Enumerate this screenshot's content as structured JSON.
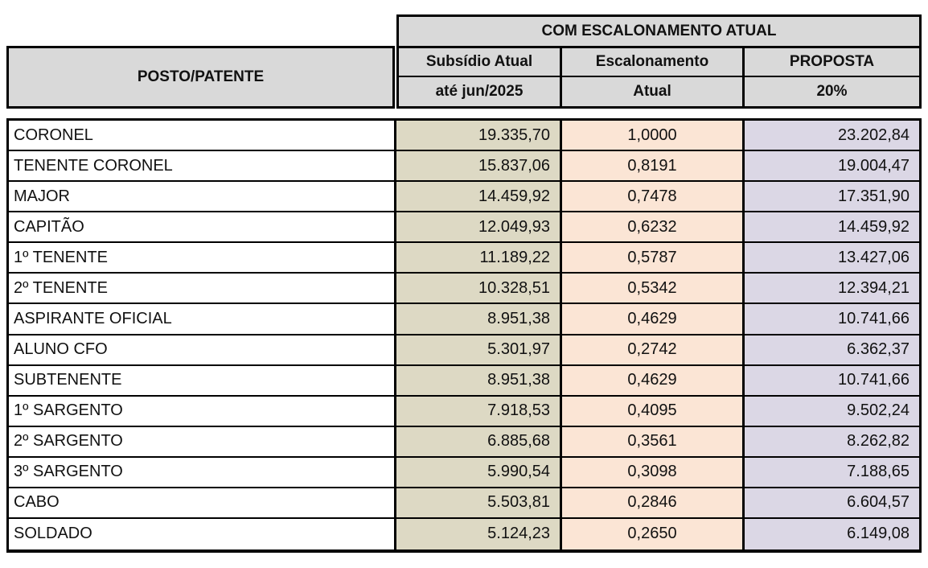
{
  "table": {
    "group_header": "COM ESCALONAMENTO ATUAL",
    "row_header": "POSTO/PATENTE",
    "columns": [
      {
        "title": "Subsídio Atual",
        "subtitle": "até jun/2025"
      },
      {
        "title": "Escalonamento",
        "subtitle": "Atual"
      },
      {
        "title": "PROPOSTA",
        "subtitle": "20%"
      }
    ],
    "rows": [
      {
        "posto": "CORONEL",
        "subsidio_atual": "19.335,70",
        "escalonamento": "1,0000",
        "proposta": "23.202,84"
      },
      {
        "posto": "TENENTE CORONEL",
        "subsidio_atual": "15.837,06",
        "escalonamento": "0,8191",
        "proposta": "19.004,47"
      },
      {
        "posto": "MAJOR",
        "subsidio_atual": "14.459,92",
        "escalonamento": "0,7478",
        "proposta": "17.351,90"
      },
      {
        "posto": "CAPITÃO",
        "subsidio_atual": "12.049,93",
        "escalonamento": "0,6232",
        "proposta": "14.459,92"
      },
      {
        "posto": "1º TENENTE",
        "subsidio_atual": "11.189,22",
        "escalonamento": "0,5787",
        "proposta": "13.427,06"
      },
      {
        "posto": "2º TENENTE",
        "subsidio_atual": "10.328,51",
        "escalonamento": "0,5342",
        "proposta": "12.394,21"
      },
      {
        "posto": "ASPIRANTE OFICIAL",
        "subsidio_atual": "8.951,38",
        "escalonamento": "0,4629",
        "proposta": "10.741,66"
      },
      {
        "posto": "ALUNO CFO",
        "subsidio_atual": "5.301,97",
        "escalonamento": "0,2742",
        "proposta": "6.362,37"
      },
      {
        "posto": "SUBTENENTE",
        "subsidio_atual": "8.951,38",
        "escalonamento": "0,4629",
        "proposta": "10.741,66"
      },
      {
        "posto": "1º SARGENTO",
        "subsidio_atual": "7.918,53",
        "escalonamento": "0,4095",
        "proposta": "9.502,24"
      },
      {
        "posto": "2º SARGENTO",
        "subsidio_atual": "6.885,68",
        "escalonamento": "0,3561",
        "proposta": "8.262,82"
      },
      {
        "posto": "3º SARGENTO",
        "subsidio_atual": "5.990,54",
        "escalonamento": "0,3098",
        "proposta": "7.188,65"
      },
      {
        "posto": "CABO",
        "subsidio_atual": "5.503,81",
        "escalonamento": "0,2846",
        "proposta": "6.604,57"
      },
      {
        "posto": "SOLDADO",
        "subsidio_atual": "5.124,23",
        "escalonamento": "0,2650",
        "proposta": "6.149,08"
      }
    ]
  },
  "colors": {
    "border": "#000000",
    "header_bg": "#d9d9d9",
    "col_subsidio_bg": "#ddd9c4",
    "col_escalonamento_bg": "#fbe5d5",
    "col_proposta_bg": "#dbd7e5"
  }
}
